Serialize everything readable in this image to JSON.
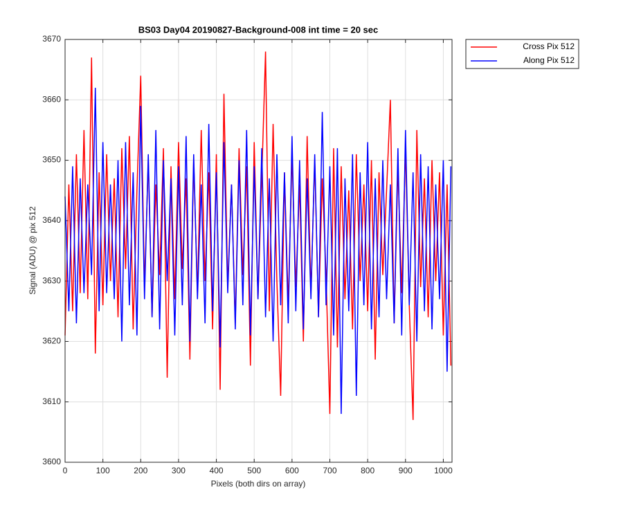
{
  "chart_data": {
    "type": "line",
    "title": "BS03 Day04 20190827-Background-008 int time = 20 sec",
    "xlabel": "Pixels (both dirs on array)",
    "ylabel": "Signal (ADU) @ pix 512",
    "x": [
      0,
      10,
      20,
      30,
      40,
      50,
      60,
      70,
      80,
      90,
      100,
      110,
      120,
      130,
      140,
      150,
      160,
      170,
      180,
      190,
      200,
      210,
      220,
      230,
      240,
      250,
      260,
      270,
      280,
      290,
      300,
      310,
      320,
      330,
      340,
      350,
      360,
      370,
      380,
      390,
      400,
      410,
      420,
      430,
      440,
      450,
      460,
      470,
      480,
      490,
      500,
      510,
      520,
      530,
      540,
      550,
      560,
      570,
      580,
      590,
      600,
      610,
      620,
      630,
      640,
      650,
      660,
      670,
      680,
      690,
      700,
      710,
      720,
      730,
      740,
      750,
      760,
      770,
      780,
      790,
      800,
      810,
      820,
      830,
      840,
      850,
      860,
      870,
      880,
      890,
      900,
      910,
      920,
      930,
      940,
      950,
      960,
      970,
      980,
      990,
      1000,
      1010,
      1020
    ],
    "series": [
      {
        "name": "Cross Pix 512",
        "color": "#ff0000",
        "values": [
          3621,
          3646,
          3625,
          3651,
          3628,
          3655,
          3627,
          3667,
          3618,
          3648,
          3626,
          3651,
          3630,
          3647,
          3624,
          3652,
          3632,
          3654,
          3622,
          3645,
          3664,
          3629,
          3650,
          3624,
          3646,
          3631,
          3652,
          3614,
          3649,
          3627,
          3653,
          3632,
          3647,
          3617,
          3650,
          3628,
          3655,
          3630,
          3648,
          3622,
          3651,
          3612,
          3661,
          3629,
          3646,
          3623,
          3652,
          3631,
          3649,
          3616,
          3653,
          3627,
          3647,
          3668,
          3625,
          3656,
          3630,
          3611,
          3648,
          3626,
          3651,
          3629,
          3646,
          3620,
          3654,
          3628,
          3650,
          3624,
          3647,
          3631,
          3608,
          3652,
          3619,
          3649,
          3627,
          3645,
          3622,
          3651,
          3630,
          3646,
          3625,
          3650,
          3617,
          3648,
          3631,
          3645,
          3660,
          3623,
          3649,
          3628,
          3652,
          3626,
          3607,
          3655,
          3629,
          3647,
          3624,
          3650,
          3630,
          3648,
          3621,
          3646,
          3616
        ]
      },
      {
        "name": "Along Pix 512",
        "color": "#0000ff",
        "values": [
          3644,
          3625,
          3649,
          3623,
          3647,
          3628,
          3646,
          3631,
          3662,
          3625,
          3653,
          3628,
          3646,
          3627,
          3650,
          3620,
          3653,
          3626,
          3648,
          3621,
          3659,
          3627,
          3651,
          3624,
          3655,
          3622,
          3650,
          3630,
          3647,
          3621,
          3649,
          3626,
          3654,
          3620,
          3651,
          3627,
          3646,
          3623,
          3656,
          3625,
          3648,
          3619,
          3653,
          3628,
          3646,
          3622,
          3650,
          3626,
          3655,
          3621,
          3649,
          3627,
          3652,
          3624,
          3647,
          3620,
          3651,
          3626,
          3648,
          3623,
          3654,
          3625,
          3650,
          3622,
          3647,
          3627,
          3651,
          3624,
          3658,
          3626,
          3649,
          3621,
          3652,
          3608,
          3647,
          3625,
          3651,
          3611,
          3648,
          3626,
          3653,
          3622,
          3647,
          3624,
          3650,
          3627,
          3646,
          3623,
          3652,
          3621,
          3655,
          3626,
          3648,
          3620,
          3651,
          3625,
          3649,
          3622,
          3646,
          3627,
          3650,
          3615,
          3649
        ]
      }
    ],
    "xlim": [
      0,
      1023
    ],
    "ylim": [
      3600,
      3670
    ],
    "xticks": [
      0,
      100,
      200,
      300,
      400,
      500,
      600,
      700,
      800,
      900,
      1000
    ],
    "yticks": [
      3600,
      3610,
      3620,
      3630,
      3640,
      3650,
      3660,
      3670
    ],
    "grid": true,
    "legend": "outside-right"
  }
}
